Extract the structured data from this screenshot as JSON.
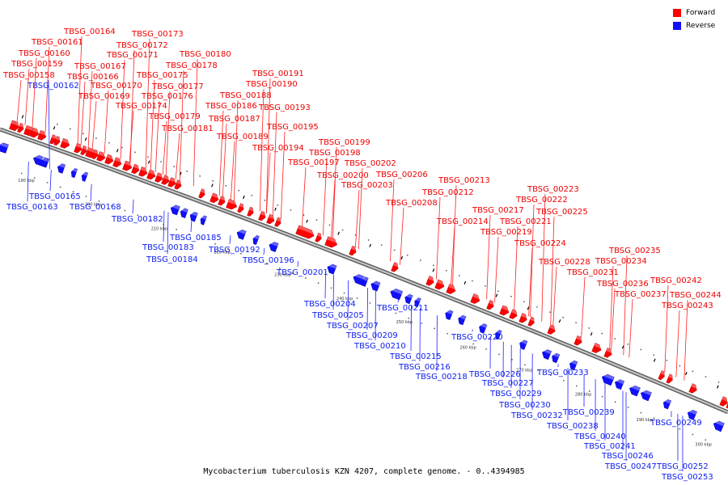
{
  "title": "Mycobacterium tuberculosis KZN 4207, complete genome. - 0..4394985",
  "colors": {
    "forward": "#ff0000",
    "reverse": "#1010ff",
    "backbone": "#909090",
    "label_line_fwd": "#ff2020",
    "label_line_rev": "#2020ff"
  },
  "legend": [
    {
      "label": "Forward",
      "color": "#ff0000"
    },
    {
      "label": "Reverse",
      "color": "#1010ff"
    }
  ],
  "scale_ticks": [
    "190 kbp",
    "200 kbp",
    "210 kbp",
    "220 kbp",
    "230 kbp",
    "240 kbp",
    "250 kbp",
    "260 kbp",
    "270 kbp",
    "280 kbp",
    "290 kbp",
    "300 kbp"
  ],
  "forward_genes": [
    "TBSG_00158",
    "TBSG_00159",
    "TBSG_00160",
    "TBSG_00161",
    "TBSG_00164",
    "TBSG_00166",
    "TBSG_00167",
    "TBSG_00169",
    "TBSG_00170",
    "TBSG_00171",
    "TBSG_00172",
    "TBSG_00173",
    "TBSG_00174",
    "TBSG_00175",
    "TBSG_00176",
    "TBSG_00177",
    "TBSG_00178",
    "TBSG_00179",
    "TBSG_00180",
    "TBSG_00181",
    "TBSG_00186",
    "TBSG_00187",
    "TBSG_00188",
    "TBSG_00189",
    "TBSG_00190",
    "TBSG_00191",
    "TBSG_00193",
    "TBSG_00194",
    "TBSG_00195",
    "TBSG_00197",
    "TBSG_00198",
    "TBSG_00199",
    "TBSG_00200",
    "TBSG_00202",
    "TBSG_00203",
    "TBSG_00206",
    "TBSG_00208",
    "TBSG_00212",
    "TBSG_00213",
    "TBSG_00214",
    "TBSG_00217",
    "TBSG_00219",
    "TBSG_00221",
    "TBSG_00222",
    "TBSG_00223",
    "TBSG_00224",
    "TBSG_00225",
    "TBSG_00228",
    "TBSG_00231",
    "TBSG_00234",
    "TBSG_00235",
    "TBSG_00236",
    "TBSG_00237",
    "TBSG_00242",
    "TBSG_00243",
    "TBSG_00244"
  ],
  "reverse_genes": [
    "TBSG_00162",
    "TBSG_00163",
    "TBSG_00165",
    "TBSG_00168",
    "TBSG_00182",
    "TBSG_00183",
    "TBSG_00184",
    "TBSG_00185",
    "TBSG_00192",
    "TBSG_00196",
    "TBSG_00201",
    "TBSG_00204",
    "TBSG_00205",
    "TBSG_00207",
    "TBSG_00209",
    "TBSG_00210",
    "TBSG_00211",
    "TBSG_00215",
    "TBSG_00216",
    "TBSG_00218",
    "TBSG_00220",
    "TBSG_00226",
    "TBSG_00227",
    "TBSG_00229",
    "TBSG_00230",
    "TBSG_00232",
    "TBSG_00233",
    "TBSG_00238",
    "TBSG_00239",
    "TBSG_00240",
    "TBSG_00241",
    "TBSG_00246",
    "TBSG_00247",
    "TBSG_00249",
    "TBSG_00252",
    "TBSG_00253"
  ]
}
